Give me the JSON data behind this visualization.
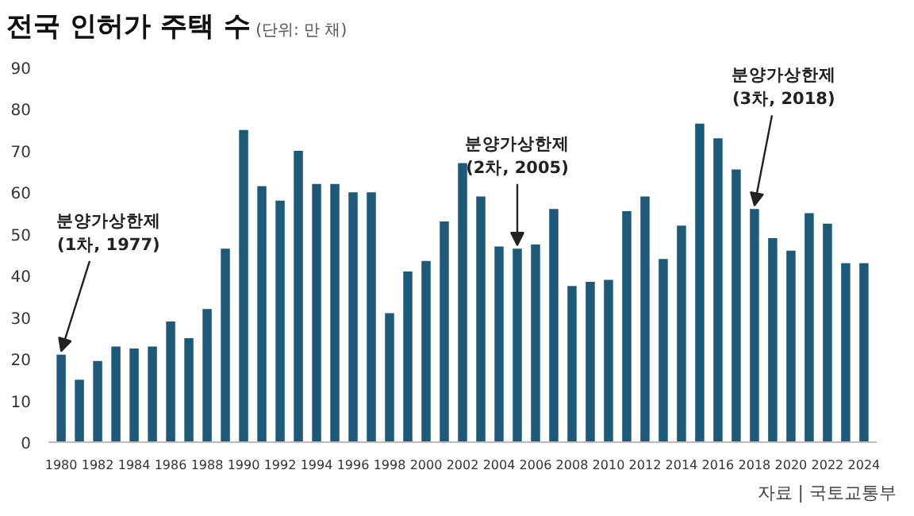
{
  "chart_data": {
    "type": "bar",
    "title": "전국 인허가 주택 수",
    "subtitle": "(단위: 만 채)",
    "x": [
      1980,
      1981,
      1982,
      1983,
      1984,
      1985,
      1986,
      1987,
      1988,
      1989,
      1990,
      1991,
      1992,
      1993,
      1994,
      1995,
      1996,
      1997,
      1998,
      1999,
      2000,
      2001,
      2002,
      2003,
      2004,
      2005,
      2006,
      2007,
      2008,
      2009,
      2010,
      2011,
      2012,
      2013,
      2014,
      2015,
      2016,
      2017,
      2018,
      2019,
      2020,
      2021,
      2022,
      2023,
      2024
    ],
    "values": [
      21,
      15,
      19.5,
      23,
      22.5,
      23,
      29,
      25,
      32,
      46.5,
      75,
      61.5,
      58,
      70,
      62,
      62,
      60,
      60,
      31,
      41,
      43.5,
      53,
      67,
      59,
      47,
      46.5,
      47.5,
      56,
      37.5,
      38.5,
      39,
      55.5,
      59,
      44,
      52,
      76.5,
      73,
      65.5,
      56,
      49,
      46,
      55,
      52.5,
      43,
      43
    ],
    "color": "#1d5a7a",
    "xlim": [
      1979.3,
      2024.7
    ],
    "xticks": [
      1980,
      1982,
      1984,
      1986,
      1988,
      1990,
      1992,
      1994,
      1996,
      1998,
      2000,
      2002,
      2004,
      2006,
      2008,
      2010,
      2012,
      2014,
      2016,
      2018,
      2020,
      2022,
      2024
    ],
    "ylim": [
      0,
      90
    ],
    "yticks": [
      0,
      10,
      20,
      30,
      40,
      50,
      60,
      70,
      80,
      90
    ],
    "grid": false,
    "annotations": [
      {
        "text": "분양가상한제\n(1차, 1977)",
        "x": 1980,
        "y": 21
      },
      {
        "text": "분양가상한제\n(2차, 2005)",
        "x": 2005,
        "y": 46.5
      },
      {
        "text": "분양가상한제\n(3차, 2018)",
        "x": 2018,
        "y": 56
      },
      "자료 | 국토교통부"
    ]
  }
}
